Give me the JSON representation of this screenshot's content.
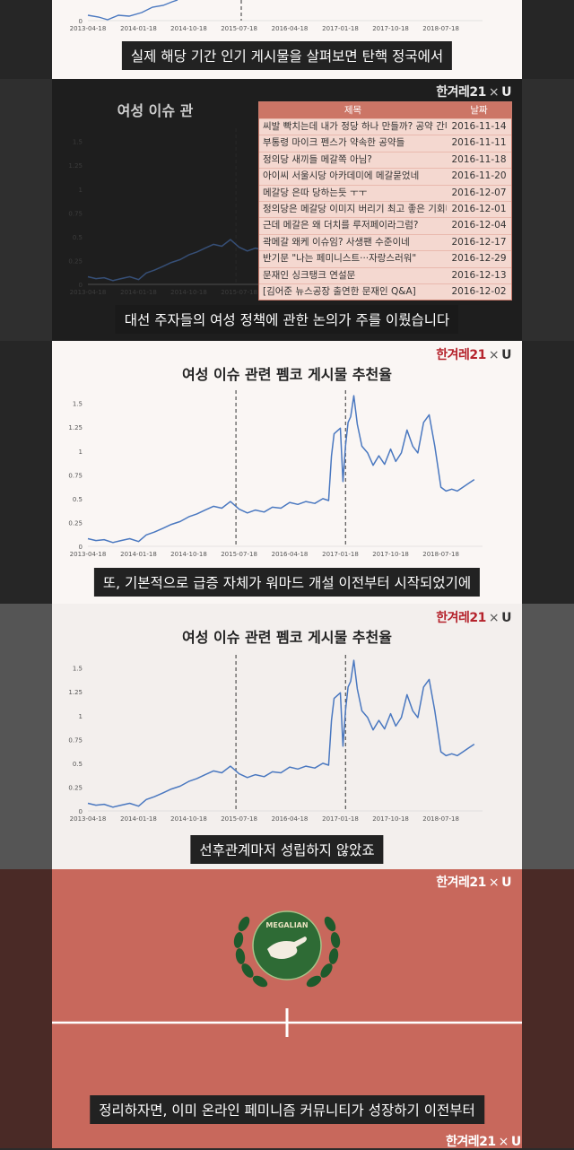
{
  "logo": {
    "main": "한겨레21",
    "sep": "×",
    "partner": "U"
  },
  "captions": {
    "c1": "실제 해당 기간 인기 게시물을 살펴보면 탄핵 정국에서",
    "c2": "대선 주자들의 여성 정책에 관한 논의가 주를 이뤘습니다",
    "c3": "또, 기본적으로 급증 자체가 워마드 개설 이전부터 시작되었기에",
    "c4": "선후관계마저 성립하지 않았죠",
    "c5": "정리하자면, 이미 온라인 페미니즘 커뮤니티가 성장하기 이전부터"
  },
  "chart_titles": {
    "t1": "여성 이슈 관",
    "t2": "여성 이슈 관련 펨코 게시물 추천율",
    "t3": "여성 이슈 관련 펨코 게시물 추천율"
  },
  "table": {
    "headers": [
      "제목",
      "날짜"
    ],
    "rows": [
      [
        "씨발 빡치는데 내가 정당 하나 만들까? 공약 간다.",
        "2016-11-14"
      ],
      [
        "부통령 마이크 펜스가 약속한 공약들",
        "2016-11-11"
      ],
      [
        "정의당 새끼들 메갈쪽 아님?",
        "2016-11-18"
      ],
      [
        "아이씨 서울시당 아카데미에 메갈묻었네",
        "2016-11-20"
      ],
      [
        "메갈당 은따 당하는듯 ㅜㅜ",
        "2016-12-07"
      ],
      [
        "정의당은 메갈당 이미지 버리기 최고 좋은 기회네",
        "2016-12-01"
      ],
      [
        "근데 메갈은 왜 더치를 루저페이라그럼?",
        "2016-12-04"
      ],
      [
        "곽메갈 왜케 이슈임? 사생팬 수준이네",
        "2016-12-17"
      ],
      [
        "반기문 \"나는 페미니스트···자랑스러워\"",
        "2016-12-29"
      ],
      [
        "문재인 싱크탱크 연설문",
        "2016-12-13"
      ],
      [
        "[김어준 뉴스공장 출연한 문재인 Q&A]",
        "2016-12-02"
      ]
    ]
  },
  "emblem": {
    "text": "MEGALIAN"
  },
  "chart_data": [
    {
      "type": "line",
      "title": "여성 이슈 관련 펨코 게시물 추천율",
      "x_ticks": [
        "2013-04-18",
        "2014-01-18",
        "2014-10-18",
        "2015-07-18",
        "2016-04-18",
        "2017-01-18",
        "2017-10-18",
        "2018-07-18"
      ],
      "y_ticks": [
        "0",
        "0.25",
        "0.5",
        "0.75",
        "1",
        "1.25",
        "1.5"
      ],
      "ylim": [
        0,
        1.6
      ],
      "xlim": [
        "2013-04-18",
        "2019-03-01"
      ],
      "vlines": [
        "2015-07-01",
        "2017-02-15"
      ],
      "series": [
        {
          "color": "#4a78c0",
          "x": [
            "2013-04-18",
            "2013-06-01",
            "2013-07-15",
            "2013-09-01",
            "2013-10-15",
            "2013-12-01",
            "2014-01-18",
            "2014-03-01",
            "2014-04-15",
            "2014-06-01",
            "2014-07-15",
            "2014-09-01",
            "2014-10-18",
            "2014-12-01",
            "2015-01-15",
            "2015-03-01",
            "2015-04-15",
            "2015-06-01",
            "2015-07-18",
            "2015-09-01",
            "2015-10-15",
            "2015-12-01",
            "2016-01-15",
            "2016-03-01",
            "2016-04-18",
            "2016-06-01",
            "2016-07-15",
            "2016-09-01",
            "2016-10-15",
            "2016-11-15",
            "2016-12-01",
            "2016-12-15",
            "2017-01-01",
            "2017-01-18",
            "2017-02-01",
            "2017-02-15",
            "2017-03-01",
            "2017-03-15",
            "2017-04-01",
            "2017-04-20",
            "2017-05-15",
            "2017-06-15",
            "2017-07-15",
            "2017-08-15",
            "2017-09-15",
            "2017-10-18",
            "2017-11-15",
            "2017-12-15",
            "2018-01-15",
            "2018-02-15",
            "2018-03-15",
            "2018-04-15",
            "2018-05-15",
            "2018-06-15",
            "2018-07-18",
            "2018-08-15",
            "2018-09-15",
            "2018-10-15",
            "2018-11-15",
            "2018-12-15",
            "2019-01-15"
          ],
          "values": [
            0.08,
            0.06,
            0.07,
            0.04,
            0.06,
            0.08,
            0.05,
            0.12,
            0.15,
            0.19,
            0.23,
            0.26,
            0.31,
            0.34,
            0.38,
            0.42,
            0.4,
            0.47,
            0.39,
            0.35,
            0.38,
            0.36,
            0.41,
            0.4,
            0.46,
            0.44,
            0.47,
            0.45,
            0.5,
            0.48,
            0.95,
            1.18,
            1.21,
            1.24,
            0.68,
            1.05,
            1.3,
            1.36,
            1.58,
            1.28,
            1.05,
            0.98,
            0.85,
            0.95,
            0.86,
            1.02,
            0.89,
            0.98,
            1.22,
            1.05,
            0.98,
            1.3,
            1.38,
            1.05,
            0.62,
            0.58,
            0.6,
            0.58,
            0.62,
            0.66,
            0.7
          ]
        }
      ]
    },
    {
      "type": "line",
      "title": "여성 이슈 관련 펨코 게시물 추천율",
      "x_ticks": [
        "2013-04-18",
        "2014-01-18",
        "2014-10-18",
        "2015-07-18",
        "2016-04-18",
        "2017-01-18",
        "2017-10-18",
        "2018-07-18"
      ],
      "y_ticks": [
        "0",
        "0.25",
        "0.5",
        "0.75",
        "1",
        "1.25",
        "1.5"
      ],
      "ylim": [
        0,
        1.6
      ],
      "vlines": [
        "2015-07-01",
        "2017-02-15"
      ],
      "series": [
        {
          "color": "#4a78c0",
          "same_as": 0
        }
      ]
    }
  ]
}
